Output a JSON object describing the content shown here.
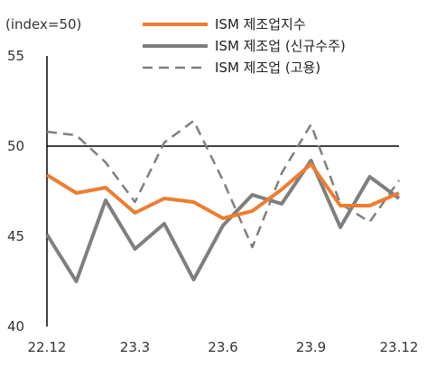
{
  "chart_data": {
    "type": "line",
    "unit_label": "(index=50)",
    "x": [
      "22.12",
      "23.1",
      "23.2",
      "23.3",
      "23.4",
      "23.5",
      "23.6",
      "23.7",
      "23.8",
      "23.9",
      "23.10",
      "23.11",
      "23.12"
    ],
    "x_tick_labels": [
      "22.12",
      "23.3",
      "23.6",
      "23.9",
      "23.12"
    ],
    "y_tick_labels": [
      "40",
      "45",
      "50",
      "55"
    ],
    "ylim": [
      40,
      55
    ],
    "reference_line": 50,
    "series": [
      {
        "name": "ISM 제조업지수",
        "style": "solid",
        "color": "#ED7D31",
        "values": [
          48.4,
          47.4,
          47.7,
          46.3,
          47.1,
          46.9,
          46.0,
          46.4,
          47.6,
          49.0,
          46.7,
          46.7,
          47.4
        ]
      },
      {
        "name": "ISM 제조업 (신규수주)",
        "style": "solid",
        "color": "#7F7F7F",
        "values": [
          45.1,
          42.5,
          47.0,
          44.3,
          45.7,
          42.6,
          45.6,
          47.3,
          46.8,
          49.2,
          45.5,
          48.3,
          47.1
        ]
      },
      {
        "name": "ISM 제조업 (고용)",
        "style": "dashed",
        "color": "#7F7F7F",
        "values": [
          50.8,
          50.6,
          49.1,
          46.9,
          50.2,
          51.4,
          48.1,
          44.4,
          48.5,
          51.2,
          46.8,
          45.8,
          48.1
        ]
      }
    ]
  }
}
